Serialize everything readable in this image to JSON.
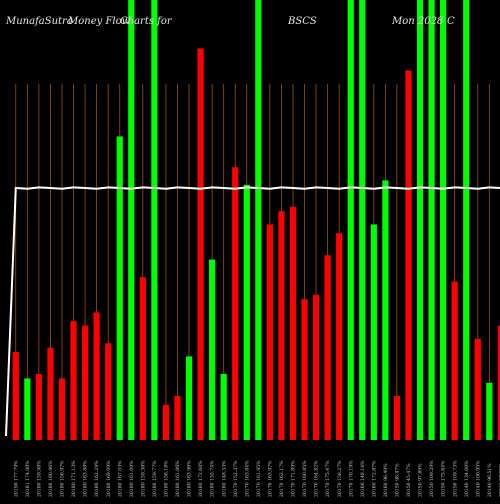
{
  "chart_data": {
    "type": "bar",
    "title_segments": [
      "MunafaSutra",
      "Money Flow",
      "Charts for",
      "BSCS",
      "Mon 2028",
      "C"
    ],
    "xlabel": "",
    "ylabel": "",
    "ylim": [
      0,
      100
    ],
    "grid": true,
    "legend": "none",
    "categories": [
      "20190 177.79%",
      "20181 174.98%",
      "20180 159.98%",
      "20180 160.96%",
      "20180 156.97%",
      "20180 171.13%",
      "20180 163.88%",
      "20180 162.29%",
      "20180 169.09%",
      "20180 167.03%",
      "20180 161.09%",
      "20180 159.38%",
      "20180 159.77%",
      "20180 158.18%",
      "20180 161.86%",
      "20180 163.96%",
      "20180 172.68%",
      "20180 155.74%",
      "20180 148.33%",
      "20170 152.37%",
      "20170 163.84%",
      "20170 161.95%",
      "20170 163.97%",
      "20170 162.17%",
      "20170 171.89%",
      "20170 160.85%",
      "20170 164.82%",
      "20170 175.47%",
      "20170 158.27%",
      "20170 170.19%",
      "20160 148.14%",
      "20160 172.87%",
      "20160 96.49%",
      "20150 98.47%",
      "20150 45.47%",
      "20150 97.89%",
      "20150 109.29%",
      "20150 175.64%",
      "20150 109.73%",
      "20140 134.00%",
      "20140 100.95%",
      "20140 96.51%",
      "20140 57.95%",
      "20140 69.88%"
    ],
    "values": [
      20,
      14,
      15,
      21,
      14,
      27,
      26,
      29,
      22,
      69,
      100,
      37,
      100,
      8,
      10,
      19,
      89,
      41,
      15,
      62,
      58,
      100,
      49,
      52,
      53,
      32,
      33,
      42,
      47,
      100,
      100,
      49,
      59,
      10,
      84,
      100,
      100,
      100,
      36,
      100,
      23,
      13,
      26,
      69
    ],
    "bar_colors": [
      "#ff0000",
      "#00ff00",
      "#ff0000",
      "#ff0000",
      "#ff0000",
      "#ff0000",
      "#ff0000",
      "#ff0000",
      "#ff0000",
      "#00ff00",
      "#00ff00",
      "#ff0000",
      "#00ff00",
      "#ff0000",
      "#ff0000",
      "#00ff00",
      "#ff0000",
      "#00ff00",
      "#00ff00",
      "#ff0000",
      "#00ff00",
      "#00ff00",
      "#ff0000",
      "#ff0000",
      "#ff0000",
      "#ff0000",
      "#ff0000",
      "#ff0000",
      "#ff0000",
      "#00ff00",
      "#00ff00",
      "#00ff00",
      "#00ff00",
      "#ff0000",
      "#ff0000",
      "#00ff00",
      "#00ff00",
      "#00ff00",
      "#ff0000",
      "#00ff00",
      "#ff0000",
      "#00ff00",
      "#ff0000",
      "#00ff00"
    ],
    "line": {
      "start": 0,
      "values": [
        100,
        100,
        100,
        100,
        100,
        100,
        100,
        100,
        100,
        100,
        100,
        100,
        100,
        100,
        100,
        100,
        100,
        100,
        100,
        100,
        100,
        100,
        100,
        100,
        100,
        100,
        100,
        100,
        100,
        100,
        100,
        100,
        100,
        100,
        100,
        100,
        100,
        100,
        100,
        100,
        100,
        100,
        100,
        100
      ]
    },
    "colors": {
      "background": "#000000",
      "grid": "#a0520a",
      "up": "#00ff00",
      "down": "#ff0000",
      "line": "#ffffff"
    }
  }
}
